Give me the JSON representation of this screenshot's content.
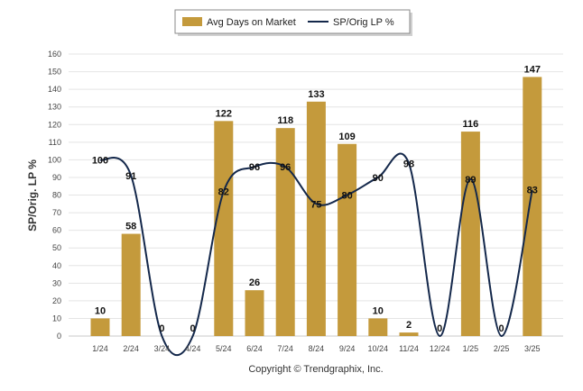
{
  "chart_data": {
    "type": "bar",
    "categories": [
      "1/24",
      "2/24",
      "3/24",
      "4/24",
      "5/24",
      "6/24",
      "7/24",
      "8/24",
      "9/24",
      "10/24",
      "11/24",
      "12/24",
      "1/25",
      "2/25",
      "3/25"
    ],
    "series": [
      {
        "name": "Avg Days on Market",
        "type": "bar",
        "color": "#c49a3c",
        "values": [
          10,
          58,
          0,
          0,
          122,
          26,
          118,
          133,
          109,
          10,
          2,
          0,
          116,
          0,
          147
        ],
        "labels": [
          "10",
          "58",
          "0",
          "0",
          "122",
          "26",
          "118",
          "133",
          "109",
          "10",
          "2",
          "0",
          "116",
          "0",
          "147"
        ]
      },
      {
        "name": "SP/Orig LP %",
        "type": "line",
        "color": "#14284b",
        "values": [
          100,
          91,
          0,
          0,
          82,
          96,
          96,
          75,
          80,
          90,
          98,
          0,
          89,
          0,
          83
        ],
        "labels": [
          "100",
          "91",
          "",
          "",
          "82",
          "96",
          "96",
          "75",
          "80",
          "90",
          "98",
          "",
          "89",
          "",
          "83"
        ]
      }
    ],
    "ylabel": "SP/Orig. LP %",
    "xlabel": "",
    "ylim": [
      0,
      160
    ],
    "yticks": [
      0,
      10,
      20,
      30,
      40,
      50,
      60,
      70,
      80,
      90,
      100,
      110,
      120,
      130,
      140,
      150,
      160
    ],
    "grid": true,
    "legend_position": "top-center"
  },
  "footer": "Copyright © Trendgraphix, Inc."
}
